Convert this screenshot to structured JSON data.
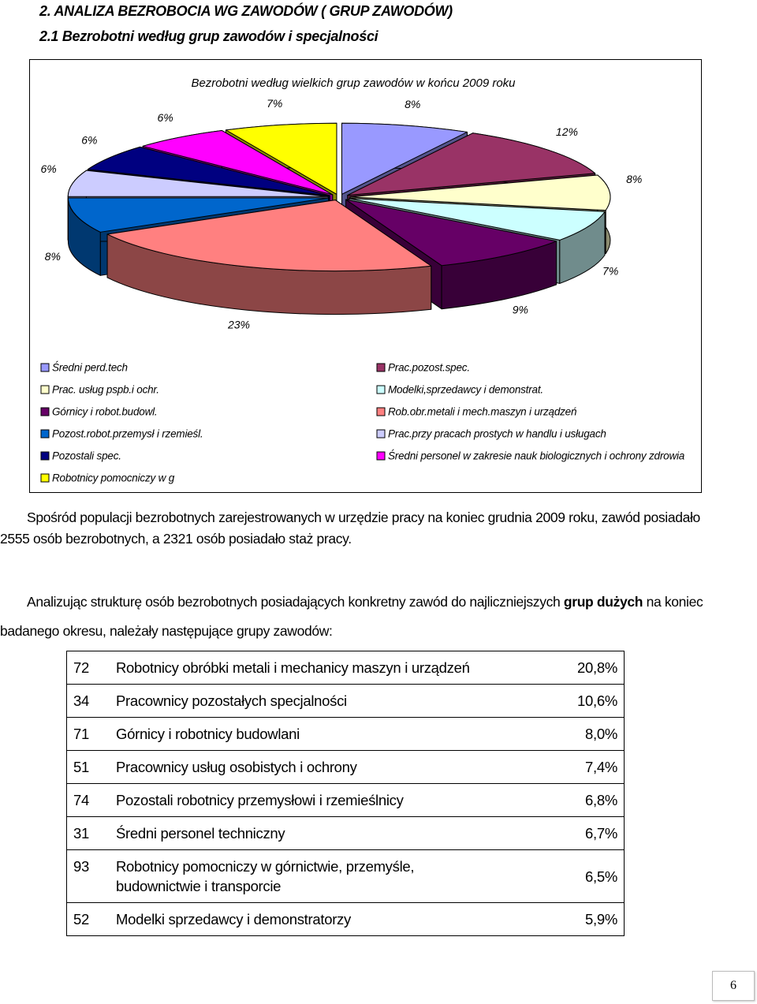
{
  "header": {
    "title": "2. ANALIZA BEZROBOCIA WG ZAWODÓW ( GRUP ZAWODÓW)",
    "subtitle": "2.1 Bezrobotni według grup zawodów i specjalności"
  },
  "chart_data": {
    "type": "pie",
    "title": "Bezrobotni według wielkich grup zawodów w końcu 2009 roku",
    "categories": [
      "Średni perd.tech",
      "Prac.pozost.spec.",
      "Prac. usług pspb.i ochr.",
      "Modelki,sprzedawcy i demonstrat.",
      "Górnicy i robot.budowl.",
      "Rob.obr.metali i mech.maszyn i urządzeń",
      "Pozost.robot.przemysł i rzemieśl.",
      "Prac.przy pracach prostych w handlu i usługach",
      "Pozostali spec.",
      "Średni personel w zakresie nauk biologicznych i ochrony zdrowia",
      "Robotnicy pomocniczy w g"
    ],
    "values": [
      8,
      12,
      8,
      7,
      9,
      23,
      8,
      6,
      6,
      6,
      7
    ],
    "value_labels": [
      "8%",
      "12%",
      "8%",
      "7%",
      "9%",
      "23%",
      "8%",
      "6%",
      "6%",
      "6%",
      "7%"
    ],
    "colors": [
      "#9999ff",
      "#993366",
      "#ffffcc",
      "#ccffff",
      "#660066",
      "#ff8080",
      "#0066cc",
      "#ccccff",
      "#000080",
      "#ff00ff",
      "#ffff00"
    ],
    "legend": "bottom"
  },
  "paragraphs": [
    {
      "text": "Spośród populacji bezrobotnych zarejestrowanych w urzędzie pracy na koniec grudnia 2009 roku, zawód posiadało 2555 osób bezrobotnych, a 2321 osób posiadało staż pracy."
    },
    {
      "before": "Analizując strukturę osób bezrobotnych posiadających konkretny zawód do najliczniejszych",
      "bold": "grup dużych",
      "after": "na koniec badanego okresu, należały następujące grupy zawodów:"
    }
  ],
  "table": {
    "rows": [
      [
        "72",
        "Robotnicy obróbki metali i mechanicy maszyn i urządzeń",
        "20,8%"
      ],
      [
        "34",
        "Pracownicy pozostałych specjalności",
        "10,6%"
      ],
      [
        "71",
        "Górnicy i robotnicy budowlani",
        "8,0%"
      ],
      [
        "51",
        "Pracownicy usług osobistych i ochrony",
        "7,4%"
      ],
      [
        "74",
        "Pozostali robotnicy przemysłowi i rzemieślnicy",
        "6,8%"
      ],
      [
        "31",
        "Średni personel techniczny",
        "6,7%"
      ],
      [
        "93",
        "Robotnicy pomocniczy w górnictwie, przemyśle, budownictwie i transporcie",
        "6,5%"
      ],
      [
        "52",
        "Modelki sprzedawcy i demonstratorzy",
        "5,9%"
      ]
    ]
  },
  "page_number": "6"
}
